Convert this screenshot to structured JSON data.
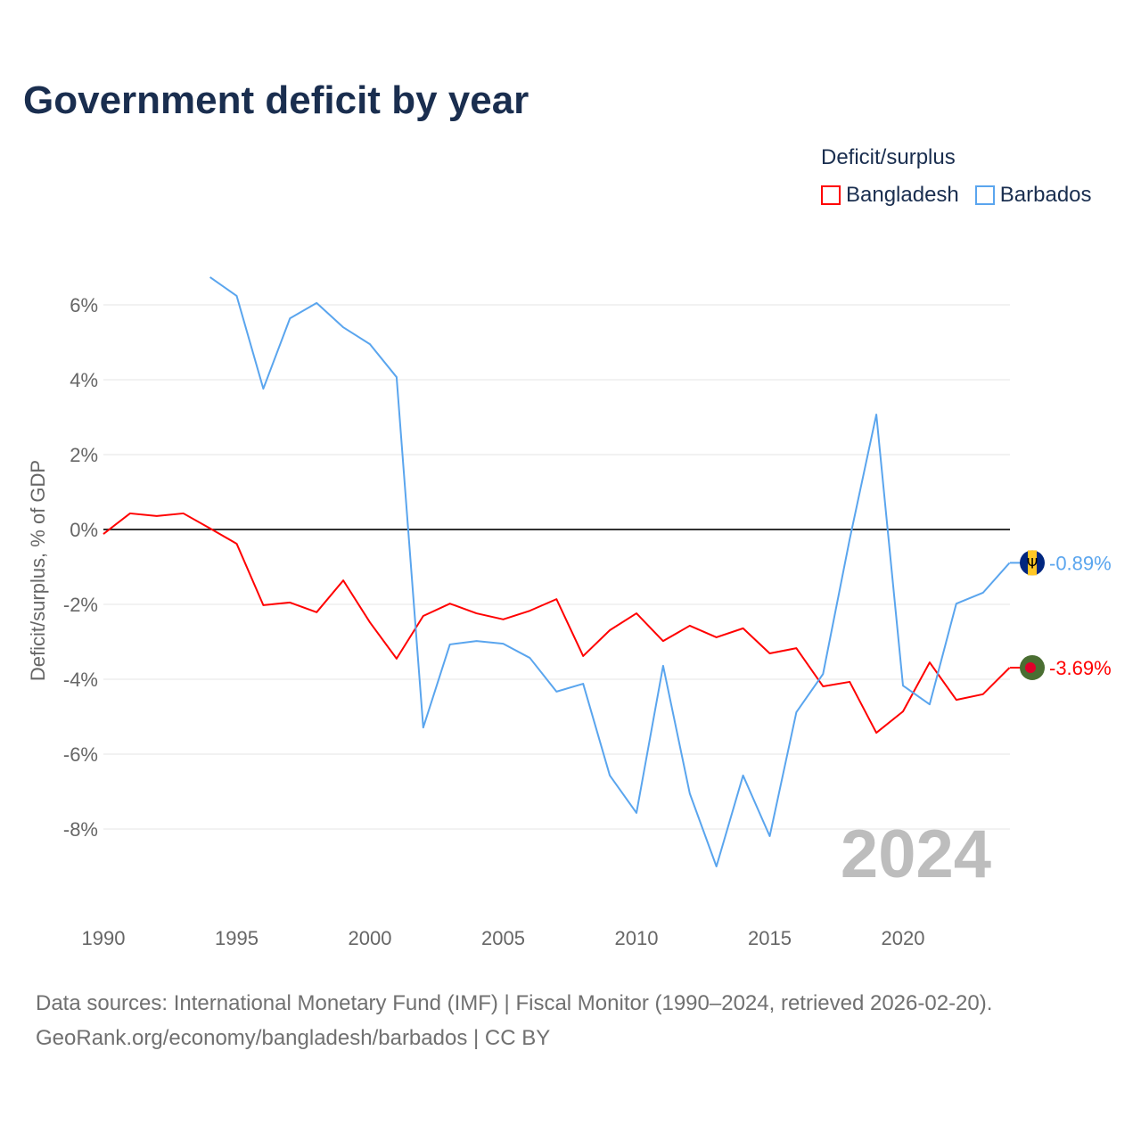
{
  "title": "Government deficit by year",
  "legend": {
    "title": "Deficit/surplus",
    "items": [
      {
        "label": "Bangladesh",
        "color": "#ff0000"
      },
      {
        "label": "Barbados",
        "color": "#5aa5ee"
      }
    ]
  },
  "footer": {
    "line1": "Data sources: International Monetary Fund (IMF) | Fiscal Monitor (1990–2024, retrieved 2026-02-20).",
    "line2": "GeoRank.org/economy/bangladesh/barbados | CC BY"
  },
  "chart_data": {
    "type": "line",
    "title": "Government deficit by year",
    "xlabel": "",
    "ylabel": "Deficit/surplus, % of GDP",
    "xlim": [
      1990,
      2024
    ],
    "ylim": [
      -10,
      7
    ],
    "x_ticks": [
      1990,
      1995,
      2000,
      2005,
      2010,
      2015,
      2020
    ],
    "y_ticks": [
      6,
      4,
      2,
      0,
      -2,
      -4,
      -6,
      -8
    ],
    "y_tick_labels": [
      "6%",
      "4%",
      "2%",
      "0%",
      "-2%",
      "-4%",
      "-6%",
      "-8%"
    ],
    "grid": true,
    "legend_position": "top-right",
    "year_watermark": "2024",
    "series": [
      {
        "name": "Bangladesh",
        "color": "#ff0000",
        "end_label": "-3.69%",
        "x": [
          1990,
          1991,
          1992,
          1993,
          1994,
          1995,
          1996,
          1997,
          1998,
          1999,
          2000,
          2001,
          2002,
          2003,
          2004,
          2005,
          2006,
          2007,
          2008,
          2009,
          2010,
          2011,
          2012,
          2013,
          2014,
          2015,
          2016,
          2017,
          2018,
          2019,
          2020,
          2021,
          2022,
          2023,
          2024
        ],
        "values": [
          -0.12,
          0.43,
          0.36,
          0.43,
          0.03,
          -0.38,
          -2.02,
          -1.95,
          -2.21,
          -1.36,
          -2.48,
          -3.45,
          -2.31,
          -1.98,
          -2.24,
          -2.4,
          -2.17,
          -1.86,
          -3.38,
          -2.69,
          -2.24,
          -2.98,
          -2.57,
          -2.88,
          -2.64,
          -3.31,
          -3.17,
          -4.19,
          -4.07,
          -5.43,
          -4.86,
          -3.55,
          -4.55,
          -4.4,
          -3.69
        ]
      },
      {
        "name": "Barbados",
        "color": "#5aa5ee",
        "end_label": "-0.89%",
        "x": [
          1994,
          1995,
          1996,
          1997,
          1998,
          1999,
          2000,
          2001,
          2002,
          2003,
          2004,
          2005,
          2006,
          2007,
          2008,
          2009,
          2010,
          2011,
          2012,
          2013,
          2014,
          2015,
          2016,
          2017,
          2018,
          2019,
          2020,
          2021,
          2022,
          2023,
          2024
        ],
        "values": [
          6.74,
          6.24,
          3.76,
          5.64,
          6.05,
          5.4,
          4.95,
          4.07,
          -5.29,
          -3.07,
          -2.98,
          -3.05,
          -3.43,
          -4.33,
          -4.12,
          -6.57,
          -7.57,
          -3.64,
          -7.05,
          -9.0,
          -6.57,
          -8.19,
          -4.88,
          -3.86,
          -0.26,
          3.07,
          -4.17,
          -4.67,
          -1.98,
          -1.69,
          -0.89
        ]
      }
    ]
  }
}
